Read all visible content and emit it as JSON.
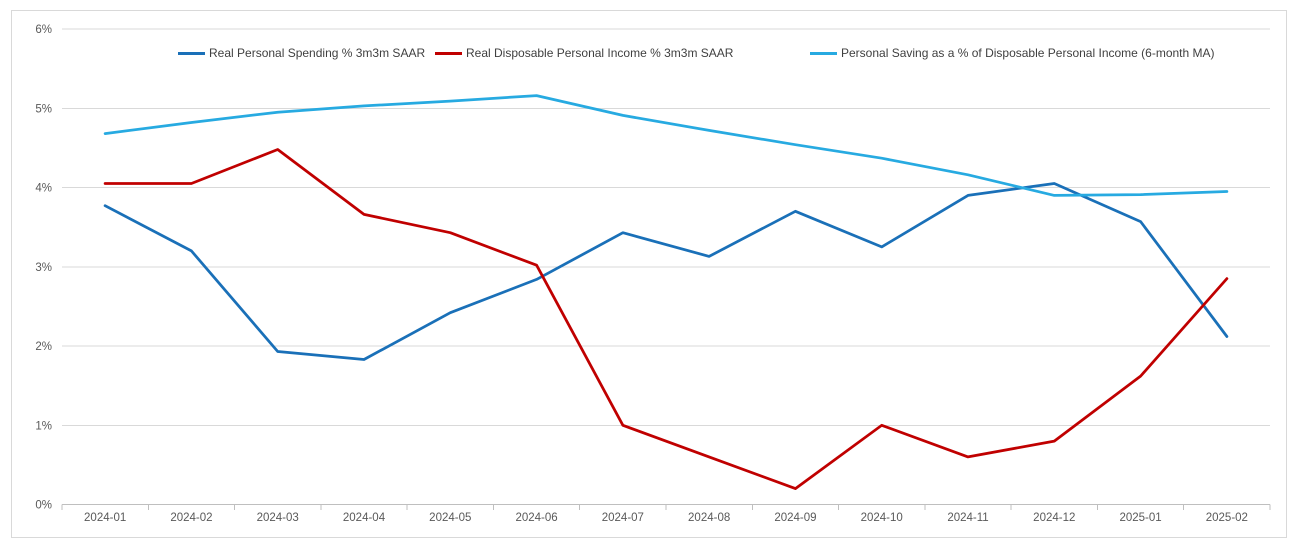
{
  "chart_data": {
    "type": "line",
    "title": "",
    "categories": [
      "2024-01",
      "2024-02",
      "2024-03",
      "2024-04",
      "2024-05",
      "2024-06",
      "2024-07",
      "2024-08",
      "2024-09",
      "2024-10",
      "2024-11",
      "2024-12",
      "2025-01",
      "2025-02"
    ],
    "series": [
      {
        "name": "Real Personal Spending % 3m3m SAAR",
        "color": "#1A70B8",
        "values": [
          3.77,
          3.2,
          1.93,
          1.83,
          2.42,
          2.84,
          3.43,
          3.13,
          3.7,
          3.25,
          3.9,
          4.05,
          3.57,
          2.12
        ]
      },
      {
        "name": "Real Disposable Personal Income  % 3m3m SAAR",
        "color": "#C00000",
        "values": [
          4.05,
          4.05,
          4.48,
          3.66,
          3.43,
          3.02,
          1.0,
          0.6,
          0.2,
          1.0,
          0.6,
          0.8,
          1.62,
          2.85
        ]
      },
      {
        "name": "Personal Saving as a % of Disposable Personal Income (6-month MA)",
        "color": "#27AAE1",
        "values": [
          4.68,
          4.82,
          4.95,
          5.03,
          5.09,
          5.16,
          4.91,
          4.72,
          4.54,
          4.37,
          4.16,
          3.9,
          3.91,
          3.95
        ]
      }
    ],
    "y_axis": {
      "min": 0,
      "max": 6,
      "tick_step": 1,
      "tick_labels": [
        "0%",
        "1%",
        "2%",
        "3%",
        "4%",
        "5%",
        "6%"
      ]
    },
    "x_axis": {
      "label": ""
    },
    "grid": true,
    "legend_position": "top"
  },
  "colors": {
    "background": "#FFFFFF",
    "frame_border": "#D9D9D9",
    "gridline": "#D9D9D9",
    "axis_line": "#BFBFBF",
    "axis_text": "#595959",
    "legend_text": "#404040"
  }
}
